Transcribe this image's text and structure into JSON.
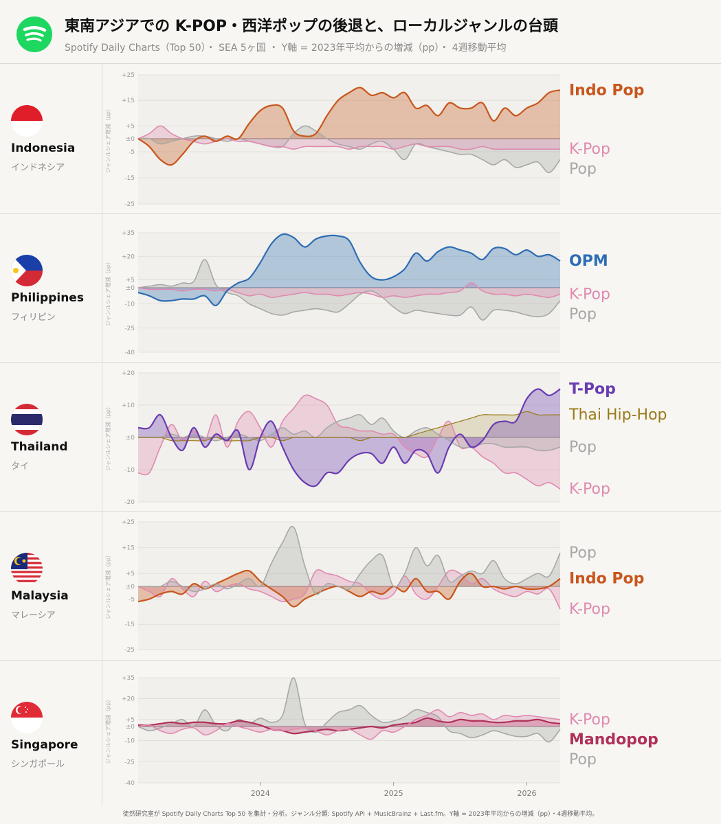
{
  "header": {
    "title": "東南アジアでの K-POP・西洋ポップの後退と、ローカルジャンルの台頭",
    "subtitle": "Spotify Daily Charts（Top 50）・ SEA 5ヶ国 ・ Y軸 = 2023年平均からの増減（pp）・ 4週移動平均",
    "logo_icon": "spotify-logo-icon"
  },
  "y_axis_label": "ジャンルシェア増減（pp）",
  "x_tick_labels": [
    "2024",
    "2025",
    "2026"
  ],
  "footer": "徒然研究室が Spotify Daily Charts Top 50 を集計・分析。ジャンル分類: Spotify API + MusicBrainz + Last.fm。Y軸 = 2023年平均からの増減（pp）・4週移動平均。",
  "colors": {
    "indo_pop": "#c8561c",
    "k_pop": "#e08ab0",
    "pop": "#a8a8a8",
    "opm": "#2e6db3",
    "t_pop": "#6a3cb0",
    "thai_hip_hop": "#9a7a18",
    "mandopop": "#b0305a"
  },
  "chart_data": [
    {
      "type": "area",
      "country": "Indonesia",
      "country_jp": "インドネシア",
      "flag_icon": "indonesia-flag-icon",
      "x": [
        "2023-02",
        "2023-03",
        "2023-04",
        "2023-05",
        "2023-06",
        "2023-07",
        "2023-08",
        "2023-09",
        "2023-10",
        "2023-11",
        "2023-12",
        "2024-01",
        "2024-02",
        "2024-03",
        "2024-04",
        "2024-05",
        "2024-06",
        "2024-07",
        "2024-08",
        "2024-09",
        "2024-10",
        "2024-11",
        "2024-12",
        "2025-01",
        "2025-02",
        "2025-03",
        "2025-04",
        "2025-05",
        "2025-06",
        "2025-07",
        "2025-08",
        "2025-09",
        "2025-10",
        "2025-11",
        "2025-12",
        "2026-01",
        "2026-02",
        "2026-03",
        "2026-04"
      ],
      "ylim": [
        -25,
        25
      ],
      "yticks": [
        "+25",
        "+15",
        "+5",
        "±0",
        "-5",
        "-15",
        "-25"
      ],
      "yticks_values": [
        25,
        15,
        5,
        0,
        -5,
        -15,
        -25
      ],
      "series": [
        {
          "name": "Indo Pop",
          "values": [
            0,
            -3,
            -8,
            -10,
            -6,
            -1,
            1,
            -1,
            1,
            0,
            6,
            11,
            13,
            12,
            3,
            1,
            2,
            9,
            15,
            18,
            20,
            17,
            18,
            16,
            18,
            12,
            13,
            9,
            14,
            12,
            12,
            14,
            7,
            12,
            9,
            12,
            14,
            18,
            19
          ]
        },
        {
          "name": "K-Pop",
          "values": [
            0,
            2,
            5,
            2,
            0,
            -1,
            -2,
            -1,
            0,
            -1,
            -1,
            -2,
            -3,
            -3,
            -4,
            -3,
            -3,
            -3,
            -3,
            -4,
            -3,
            -3,
            -3,
            -4,
            -3,
            -2,
            -3,
            -3,
            -3,
            -4,
            -4,
            -3,
            -4,
            -4,
            -4,
            -4,
            -4,
            -4,
            -4
          ]
        },
        {
          "name": "Pop",
          "values": [
            0,
            0,
            -2,
            -1,
            0,
            1,
            1,
            0,
            -1,
            0,
            -1,
            -2,
            -3,
            -3,
            2,
            5,
            3,
            0,
            -2,
            -3,
            -4,
            -2,
            -1,
            -4,
            -8,
            -2,
            -3,
            -4,
            -5,
            -6,
            -6,
            -8,
            -10,
            -8,
            -11,
            -10,
            -9,
            -13,
            -8
          ]
        }
      ]
    },
    {
      "type": "area",
      "country": "Philippines",
      "country_jp": "フィリピン",
      "flag_icon": "philippines-flag-icon",
      "x": [
        "2023-02",
        "2023-03",
        "2023-04",
        "2023-05",
        "2023-06",
        "2023-07",
        "2023-08",
        "2023-09",
        "2023-10",
        "2023-11",
        "2023-12",
        "2024-01",
        "2024-02",
        "2024-03",
        "2024-04",
        "2024-05",
        "2024-06",
        "2024-07",
        "2024-08",
        "2024-09",
        "2024-10",
        "2024-11",
        "2024-12",
        "2025-01",
        "2025-02",
        "2025-03",
        "2025-04",
        "2025-05",
        "2025-06",
        "2025-07",
        "2025-08",
        "2025-09",
        "2025-10",
        "2025-11",
        "2025-12",
        "2026-01",
        "2026-02",
        "2026-03",
        "2026-04"
      ],
      "ylim": [
        -40,
        35
      ],
      "yticks": [
        "+35",
        "+20",
        "+5",
        "±0",
        "-10",
        "-25",
        "-40"
      ],
      "yticks_values": [
        35,
        20,
        5,
        0,
        -10,
        -25,
        -40
      ],
      "series": [
        {
          "name": "OPM",
          "values": [
            -3,
            -5,
            -8,
            -8,
            -7,
            -7,
            -5,
            -11,
            -2,
            3,
            6,
            16,
            28,
            34,
            32,
            26,
            31,
            33,
            33,
            30,
            16,
            7,
            5,
            7,
            12,
            22,
            17,
            23,
            26,
            24,
            22,
            18,
            25,
            25,
            21,
            24,
            20,
            21,
            17
          ]
        },
        {
          "name": "K-Pop",
          "values": [
            0,
            -1,
            -1,
            -1,
            -2,
            -1,
            -1,
            -2,
            -1,
            -3,
            -5,
            -4,
            -6,
            -5,
            -4,
            -3,
            -4,
            -4,
            -5,
            -4,
            -3,
            -4,
            -6,
            -5,
            -6,
            -5,
            -4,
            -4,
            -3,
            -2,
            3,
            -2,
            -4,
            -4,
            -5,
            -4,
            -5,
            -6,
            -4
          ]
        },
        {
          "name": "Pop",
          "values": [
            0,
            1,
            2,
            1,
            3,
            4,
            18,
            2,
            -3,
            -5,
            -10,
            -13,
            -16,
            -17,
            -15,
            -14,
            -13,
            -14,
            -15,
            -10,
            -4,
            -2,
            -6,
            -12,
            -16,
            -14,
            -15,
            -16,
            -17,
            -17,
            -12,
            -20,
            -14,
            -14,
            -15,
            -17,
            -18,
            -16,
            -8
          ]
        }
      ]
    },
    {
      "type": "area",
      "country": "Thailand",
      "country_jp": "タイ",
      "flag_icon": "thailand-flag-icon",
      "x": [
        "2023-02",
        "2023-03",
        "2023-04",
        "2023-05",
        "2023-06",
        "2023-07",
        "2023-08",
        "2023-09",
        "2023-10",
        "2023-11",
        "2023-12",
        "2024-01",
        "2024-02",
        "2024-03",
        "2024-04",
        "2024-05",
        "2024-06",
        "2024-07",
        "2024-08",
        "2024-09",
        "2024-10",
        "2024-11",
        "2024-12",
        "2025-01",
        "2025-02",
        "2025-03",
        "2025-04",
        "2025-05",
        "2025-06",
        "2025-07",
        "2025-08",
        "2025-09",
        "2025-10",
        "2025-11",
        "2025-12",
        "2026-01",
        "2026-02",
        "2026-03",
        "2026-04"
      ],
      "ylim": [
        -20,
        20
      ],
      "yticks": [
        "+20",
        "+10",
        "±0",
        "-10",
        "-20"
      ],
      "yticks_values": [
        20,
        10,
        0,
        -10,
        -20
      ],
      "series": [
        {
          "name": "T-Pop",
          "values": [
            3,
            3,
            7,
            0,
            -4,
            3,
            -3,
            1,
            -1,
            2,
            -10,
            0,
            5,
            -3,
            -10,
            -14,
            -15,
            -11,
            -11,
            -7,
            -5,
            -5,
            -8,
            -3,
            -8,
            -4,
            -5,
            -11,
            -3,
            1,
            -3,
            -1,
            4,
            5,
            5,
            12,
            15,
            13,
            15
          ]
        },
        {
          "name": "Thai Hip-Hop",
          "values": [
            0,
            0,
            0,
            -1,
            -1,
            -1,
            -1,
            0,
            -1,
            -1,
            -1,
            0,
            0,
            -1,
            0,
            0,
            0,
            0,
            0,
            0,
            -1,
            0,
            0,
            0,
            0,
            1,
            2,
            3,
            4,
            5,
            6,
            7,
            7,
            7,
            7,
            8,
            7,
            7,
            7
          ]
        },
        {
          "name": "Pop",
          "values": [
            0,
            0,
            0,
            1,
            0,
            1,
            0,
            -1,
            0,
            1,
            0,
            -1,
            1,
            3,
            1,
            2,
            0,
            3,
            5,
            6,
            7,
            4,
            6,
            2,
            0,
            2,
            3,
            1,
            -1,
            -3,
            -3,
            -2,
            -2,
            -3,
            -3,
            -3,
            -4,
            -4,
            -3
          ]
        },
        {
          "name": "K-Pop",
          "values": [
            -11,
            -11,
            -3,
            4,
            -1,
            2,
            -1,
            7,
            -3,
            5,
            8,
            3,
            -3,
            5,
            9,
            13,
            12,
            10,
            4,
            3,
            2,
            2,
            1,
            1,
            -3,
            -5,
            -6,
            0,
            5,
            -3,
            -3,
            -6,
            -8,
            -11,
            -11,
            -13,
            -15,
            -14,
            -16
          ]
        }
      ]
    },
    {
      "type": "area",
      "country": "Malaysia",
      "country_jp": "マレーシア",
      "flag_icon": "malaysia-flag-icon",
      "x": [
        "2023-02",
        "2023-03",
        "2023-04",
        "2023-05",
        "2023-06",
        "2023-07",
        "2023-08",
        "2023-09",
        "2023-10",
        "2023-11",
        "2023-12",
        "2024-01",
        "2024-02",
        "2024-03",
        "2024-04",
        "2024-05",
        "2024-06",
        "2024-07",
        "2024-08",
        "2024-09",
        "2024-10",
        "2024-11",
        "2024-12",
        "2025-01",
        "2025-02",
        "2025-03",
        "2025-04",
        "2025-05",
        "2025-06",
        "2025-07",
        "2025-08",
        "2025-09",
        "2025-10",
        "2025-11",
        "2025-12",
        "2026-01",
        "2026-02",
        "2026-03",
        "2026-04"
      ],
      "ylim": [
        -25,
        25
      ],
      "yticks": [
        "+25",
        "+15",
        "+5",
        "±0",
        "-5",
        "-15",
        "-25"
      ],
      "yticks_values": [
        25,
        15,
        5,
        0,
        -5,
        -15,
        -25
      ],
      "series": [
        {
          "name": "Pop",
          "values": [
            0,
            0,
            0,
            2,
            0,
            -2,
            -1,
            1,
            -1,
            1,
            3,
            0,
            9,
            17,
            23,
            8,
            -3,
            1,
            0,
            -1,
            5,
            10,
            12,
            0,
            5,
            15,
            8,
            12,
            2,
            4,
            6,
            5,
            10,
            3,
            1,
            3,
            5,
            4,
            13
          ]
        },
        {
          "name": "Indo Pop",
          "values": [
            -6,
            -5,
            -3,
            -2,
            -3,
            1,
            -1,
            1,
            3,
            5,
            6,
            2,
            -1,
            -4,
            -8,
            -5,
            -3,
            -1,
            0,
            -2,
            -4,
            -2,
            -3,
            0,
            -2,
            3,
            -2,
            -2,
            -5,
            2,
            5,
            0,
            0,
            -1,
            0,
            -1,
            -1,
            0,
            3
          ]
        },
        {
          "name": "K-Pop",
          "values": [
            0,
            -2,
            -4,
            3,
            -1,
            -4,
            2,
            -2,
            0,
            1,
            -1,
            -2,
            -4,
            -6,
            -5,
            -3,
            6,
            5,
            4,
            2,
            1,
            -3,
            -5,
            -3,
            4,
            -3,
            -5,
            0,
            6,
            5,
            1,
            3,
            -1,
            -3,
            -4,
            -2,
            -3,
            -1,
            -9
          ]
        }
      ]
    },
    {
      "type": "area",
      "country": "Singapore",
      "country_jp": "シンガポール",
      "flag_icon": "singapore-flag-icon",
      "x": [
        "2023-02",
        "2023-03",
        "2023-04",
        "2023-05",
        "2023-06",
        "2023-07",
        "2023-08",
        "2023-09",
        "2023-10",
        "2023-11",
        "2023-12",
        "2024-01",
        "2024-02",
        "2024-03",
        "2024-04",
        "2024-05",
        "2024-06",
        "2024-07",
        "2024-08",
        "2024-09",
        "2024-10",
        "2024-11",
        "2024-12",
        "2025-01",
        "2025-02",
        "2025-03",
        "2025-04",
        "2025-05",
        "2025-06",
        "2025-07",
        "2025-08",
        "2025-09",
        "2025-10",
        "2025-11",
        "2025-12",
        "2026-01",
        "2026-02",
        "2026-03",
        "2026-04"
      ],
      "ylim": [
        -40,
        35
      ],
      "yticks": [
        "+35",
        "+20",
        "+5",
        "±0",
        "-10",
        "-25",
        "-40"
      ],
      "yticks_values": [
        35,
        20,
        5,
        0,
        -10,
        -25,
        -40
      ],
      "series": [
        {
          "name": "K-Pop",
          "values": [
            0,
            1,
            -3,
            -5,
            -2,
            -1,
            -6,
            -3,
            2,
            0,
            -2,
            -4,
            -2,
            -3,
            -2,
            -1,
            -3,
            -6,
            -3,
            -2,
            -6,
            -9,
            -3,
            -4,
            0,
            5,
            8,
            12,
            7,
            10,
            8,
            9,
            5,
            8,
            7,
            8,
            7,
            6,
            5
          ]
        },
        {
          "name": "Mandopop",
          "values": [
            1,
            1,
            2,
            3,
            2,
            3,
            3,
            2,
            2,
            4,
            3,
            1,
            -2,
            -3,
            -5,
            -4,
            -3,
            -2,
            -3,
            -2,
            -1,
            0,
            -1,
            1,
            2,
            3,
            6,
            4,
            3,
            5,
            4,
            4,
            3,
            3,
            4,
            4,
            5,
            3,
            2
          ]
        },
        {
          "name": "Pop",
          "values": [
            0,
            -3,
            -1,
            2,
            5,
            0,
            12,
            1,
            -3,
            5,
            2,
            6,
            3,
            8,
            35,
            2,
            -4,
            3,
            10,
            12,
            15,
            8,
            3,
            4,
            7,
            12,
            10,
            7,
            -3,
            -5,
            -8,
            -6,
            -3,
            -5,
            -7,
            -7,
            -5,
            -11,
            -2
          ]
        }
      ]
    }
  ]
}
